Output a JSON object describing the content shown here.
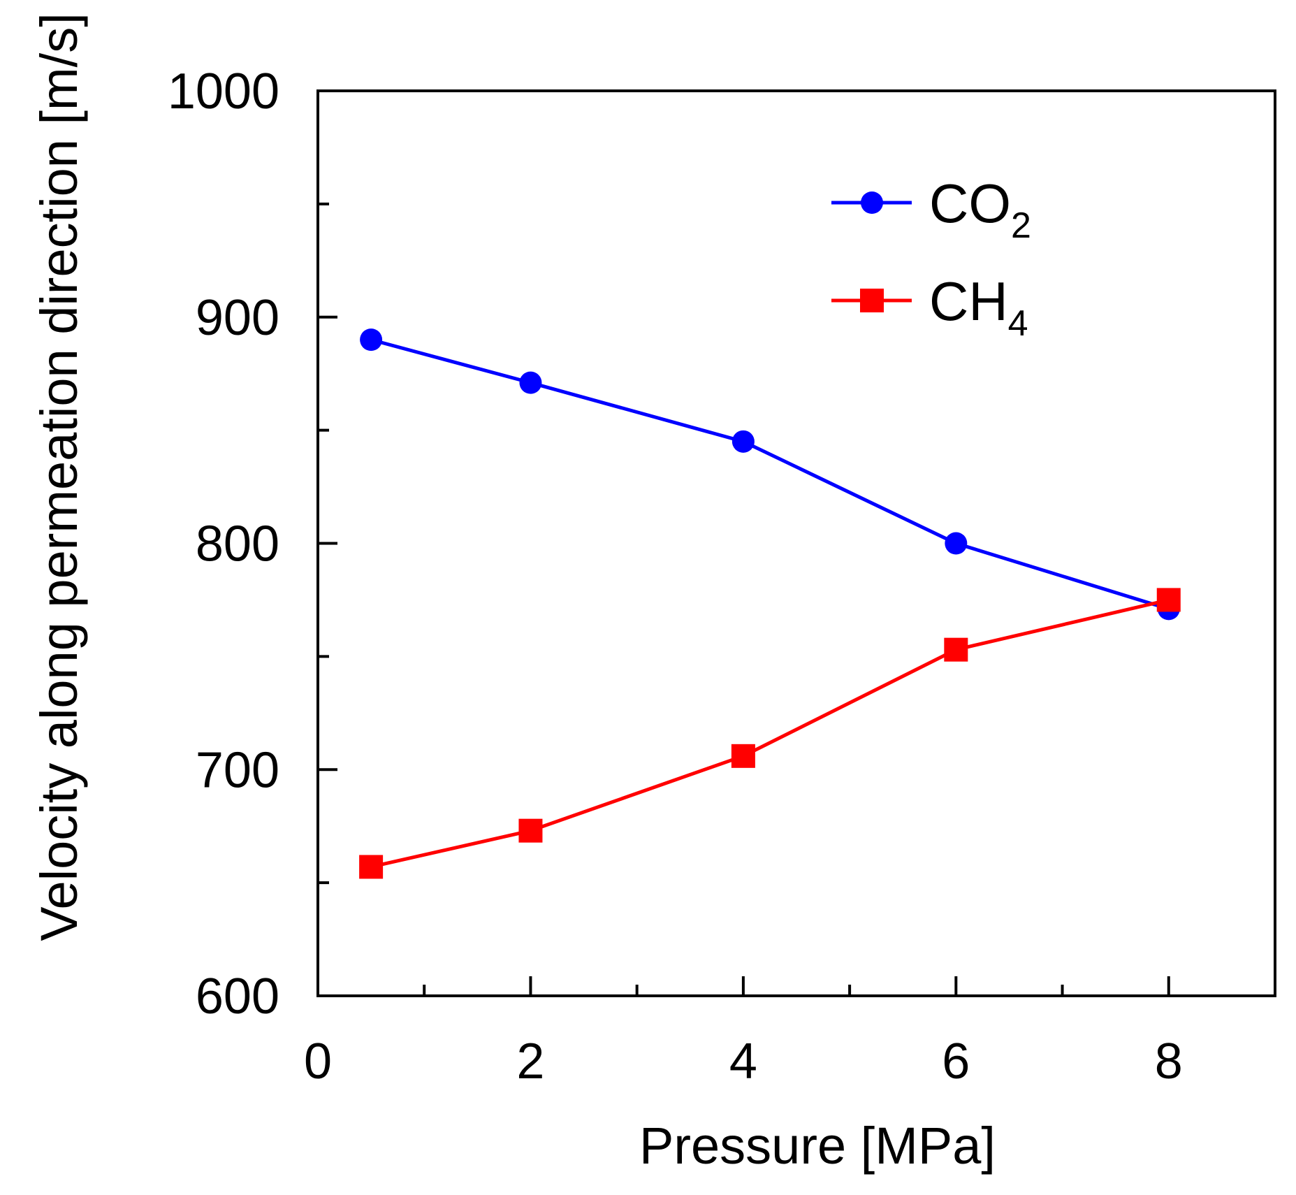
{
  "chart_data": {
    "type": "line",
    "title": "",
    "xlabel": "Pressure [MPa]",
    "ylabel": "Velocity along permeation direction [m/s]",
    "xlim": [
      0,
      9
    ],
    "ylim": [
      600,
      1000
    ],
    "xticks": [
      0,
      2,
      4,
      6,
      8
    ],
    "xticks_minor": [
      1,
      3,
      5,
      7
    ],
    "yticks": [
      600,
      700,
      800,
      900,
      1000
    ],
    "yticks_minor": [
      650,
      750,
      850,
      950
    ],
    "grid": false,
    "legend_position": "top-right",
    "series": [
      {
        "name": "CO2",
        "name_base": "CO",
        "name_sub": "2",
        "color": "#0000ff",
        "marker": "circle",
        "x": [
          0.5,
          2,
          4,
          6,
          8
        ],
        "values": [
          890,
          871,
          845,
          800,
          771
        ]
      },
      {
        "name": "CH4",
        "name_base": "CH",
        "name_sub": "4",
        "color": "#ff0000",
        "marker": "square",
        "x": [
          0.5,
          2,
          4,
          6,
          8
        ],
        "values": [
          657,
          673,
          706,
          753,
          775
        ]
      }
    ]
  }
}
